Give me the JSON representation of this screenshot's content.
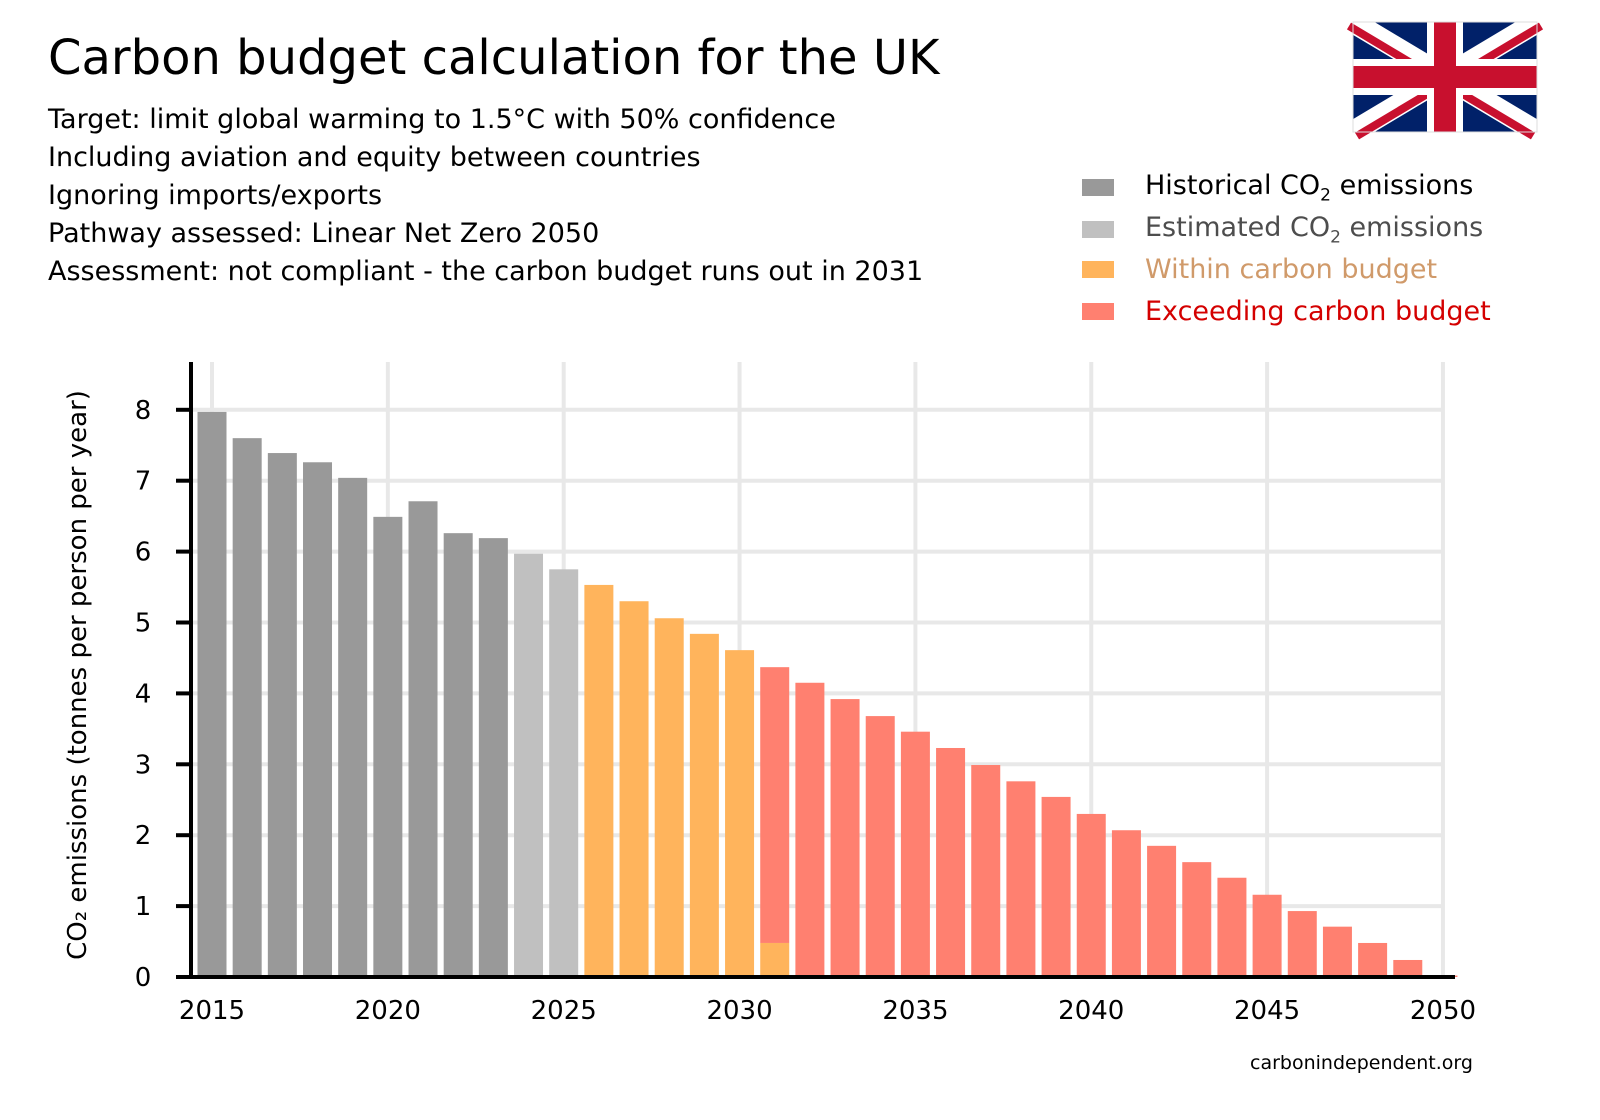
{
  "title": "Carbon budget calculation for the UK",
  "subtitles": [
    "Target: limit global warming to 1.5°C with 50% confidence",
    "Including aviation and equity between countries",
    "Ignoring imports/exports",
    "Pathway assessed: Linear Net Zero 2050",
    "Assessment: not compliant - the carbon budget runs out in 2031"
  ],
  "legend": [
    {
      "pre": "Historical CO",
      "sub": "2",
      "post": " emissions",
      "color": "#999999",
      "text_color": "#000000"
    },
    {
      "pre": "Estimated CO",
      "sub": "2",
      "post": " emissions",
      "color": "#c0c0c0",
      "text_color": "#4d4d4d"
    },
    {
      "pre": "Within carbon budget",
      "sub": "",
      "post": "",
      "color": "#ffb45c",
      "text_color": "#d09a6a"
    },
    {
      "pre": "Exceeding carbon budget",
      "sub": "",
      "post": "",
      "color": "#ff8070",
      "text_color": "#d40000"
    }
  ],
  "credit": "carbonindependent.org",
  "flag": "union-jack",
  "chart_data": {
    "type": "bar",
    "stacked": true,
    "ylabel": "CO₂ emissions (tonnes per person per year)",
    "xlabel": "",
    "ylim": [
      0,
      8.6
    ],
    "xlim": [
      2014.5,
      2050.5
    ],
    "grid": true,
    "legend_position": "top-right",
    "x_ticks": [
      "2015",
      "2020",
      "2025",
      "2030",
      "2035",
      "2040",
      "2045",
      "2050"
    ],
    "y_ticks": [
      "0",
      "1",
      "2",
      "3",
      "4",
      "5",
      "6",
      "7",
      "8"
    ],
    "years": [
      2015,
      2016,
      2017,
      2018,
      2019,
      2020,
      2021,
      2022,
      2023,
      2024,
      2025,
      2026,
      2027,
      2028,
      2029,
      2030,
      2031,
      2032,
      2033,
      2034,
      2035,
      2036,
      2037,
      2038,
      2039,
      2040,
      2041,
      2042,
      2043,
      2044,
      2045,
      2046,
      2047,
      2048,
      2049,
      2050
    ],
    "series": [
      {
        "name": "Historical CO2 emissions",
        "color": "#999999",
        "values": [
          7.97,
          7.6,
          7.39,
          7.26,
          7.04,
          6.49,
          6.71,
          6.26,
          6.19,
          0,
          0,
          0,
          0,
          0,
          0,
          0,
          0,
          0,
          0,
          0,
          0,
          0,
          0,
          0,
          0,
          0,
          0,
          0,
          0,
          0,
          0,
          0,
          0,
          0,
          0,
          0
        ]
      },
      {
        "name": "Estimated CO2 emissions",
        "color": "#c0c0c0",
        "values": [
          0,
          0,
          0,
          0,
          0,
          0,
          0,
          0,
          0,
          5.97,
          5.75,
          0,
          0,
          0,
          0,
          0,
          0,
          0,
          0,
          0,
          0,
          0,
          0,
          0,
          0,
          0,
          0,
          0,
          0,
          0,
          0,
          0,
          0,
          0,
          0,
          0
        ]
      },
      {
        "name": "Within carbon budget",
        "color": "#ffb45c",
        "values": [
          0,
          0,
          0,
          0,
          0,
          0,
          0,
          0,
          0,
          0,
          0,
          5.53,
          5.3,
          5.06,
          4.84,
          4.61,
          0.48,
          0,
          0,
          0,
          0,
          0,
          0,
          0,
          0,
          0,
          0,
          0,
          0,
          0,
          0,
          0,
          0,
          0,
          0,
          0
        ]
      },
      {
        "name": "Exceeding carbon budget",
        "color": "#ff8070",
        "values": [
          0,
          0,
          0,
          0,
          0,
          0,
          0,
          0,
          0,
          0,
          0,
          0,
          0,
          0,
          0,
          0,
          3.89,
          4.15,
          3.92,
          3.68,
          3.46,
          3.23,
          2.99,
          2.76,
          2.54,
          2.3,
          2.07,
          1.85,
          1.62,
          1.4,
          1.16,
          0.93,
          0.71,
          0.48,
          0.24,
          0.02
        ]
      }
    ]
  }
}
